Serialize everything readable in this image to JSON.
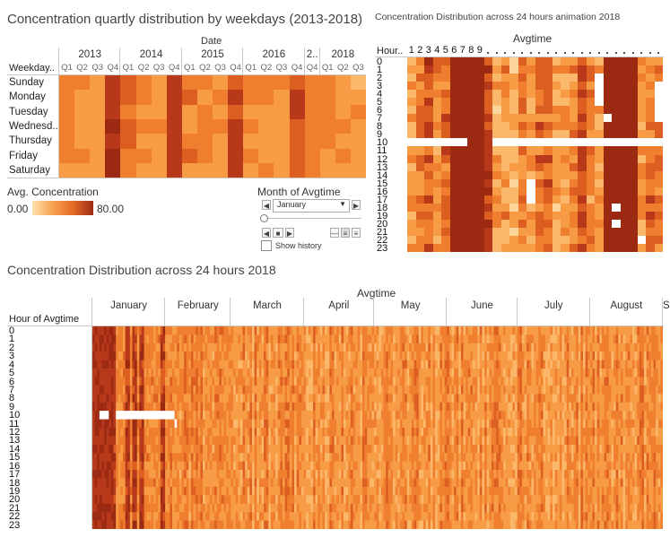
{
  "panel1": {
    "title": "Concentration quartly distribution by weekdays (2013-2018)",
    "date_header": "Date",
    "row_header": "Weekday..",
    "years": [
      "2013",
      "2014",
      "2015",
      "2016",
      "2..",
      "2018"
    ],
    "quarters": [
      "Q1",
      "Q2",
      "Q3",
      "Q4",
      "Q1",
      "Q2",
      "Q3",
      "Q4",
      "Q1",
      "Q2",
      "Q3",
      "Q4",
      "Q1",
      "Q2",
      "Q3",
      "Q4",
      "Q4",
      "Q1",
      "Q2",
      "Q3"
    ],
    "weekdays": [
      "Sunday",
      "Monday",
      "Tuesday",
      "Wednesd..",
      "Thursday",
      "Friday",
      "Saturday"
    ]
  },
  "legend": {
    "title": "Avg. Concentration",
    "min": "0.00",
    "max": "80.00",
    "color_low": "#fdd9a0",
    "color_high": "#9c2a12"
  },
  "filter": {
    "title": "Month of Avgtime",
    "selected": "January",
    "show_history": "Show history"
  },
  "panel2": {
    "title": "Concentration Distribution across 24 hours animation 2018",
    "col_header": "Avgtime",
    "row_header": "Hour..",
    "day_labels": [
      "1",
      "2",
      "3",
      "4",
      "5",
      "6",
      "7",
      "8",
      "9"
    ],
    "hours": [
      "0",
      "1",
      "2",
      "3",
      "4",
      "5",
      "6",
      "7",
      "8",
      "9",
      "10",
      "11",
      "12",
      "13",
      "14",
      "15",
      "16",
      "17",
      "18",
      "19",
      "20",
      "21",
      "22",
      "23"
    ]
  },
  "panel3": {
    "title": "Concentration Distribution across 24 hours 2018",
    "col_header": "Avgtime",
    "row_header": "Hour of Avgtime",
    "months": [
      "January",
      "February",
      "March",
      "April",
      "May",
      "June",
      "July",
      "August",
      "Sept.."
    ],
    "hours": [
      "0",
      "1",
      "2",
      "3",
      "4",
      "5",
      "6",
      "7",
      "8",
      "9",
      "10",
      "11",
      "12",
      "13",
      "14",
      "15",
      "16",
      "17",
      "18",
      "19",
      "20",
      "21",
      "22",
      "23"
    ]
  },
  "colors": {
    "c1": "#fdd59a",
    "c2": "#fbb76a",
    "c3": "#f79b45",
    "c4": "#ef7f2e",
    "c5": "#dd5e21",
    "c6": "#b8391a",
    "c7": "#9c2a12"
  }
}
